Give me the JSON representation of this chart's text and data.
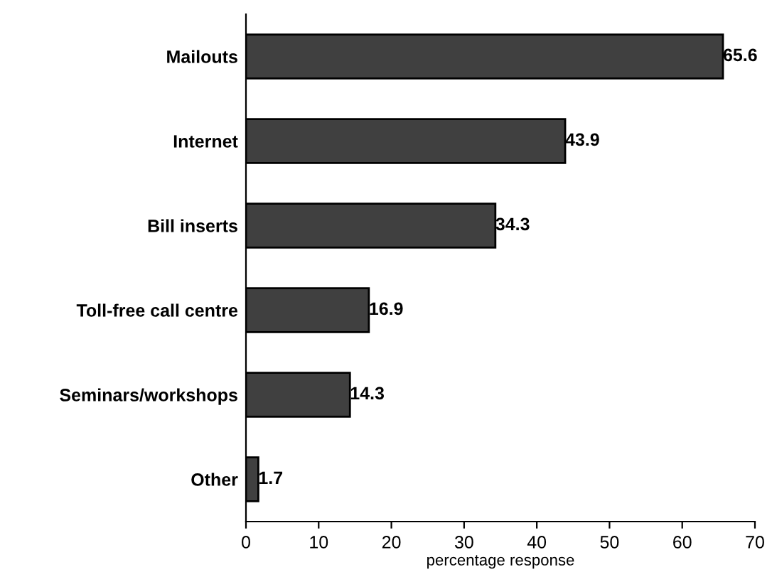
{
  "chart_data": {
    "type": "bar",
    "orientation": "horizontal",
    "categories": [
      "Mailouts",
      "Internet",
      "Bill inserts",
      "Toll-free call centre",
      "Seminars/workshops",
      "Other"
    ],
    "values": [
      65.6,
      43.9,
      34.3,
      16.9,
      14.3,
      1.7
    ],
    "color": "#404040",
    "xlabel": "percentage response",
    "xlim": [
      0,
      70
    ],
    "xticks": [
      0,
      10,
      20,
      30,
      40,
      50,
      60,
      70
    ],
    "data_labels": true,
    "grid": false,
    "legend": false
  }
}
